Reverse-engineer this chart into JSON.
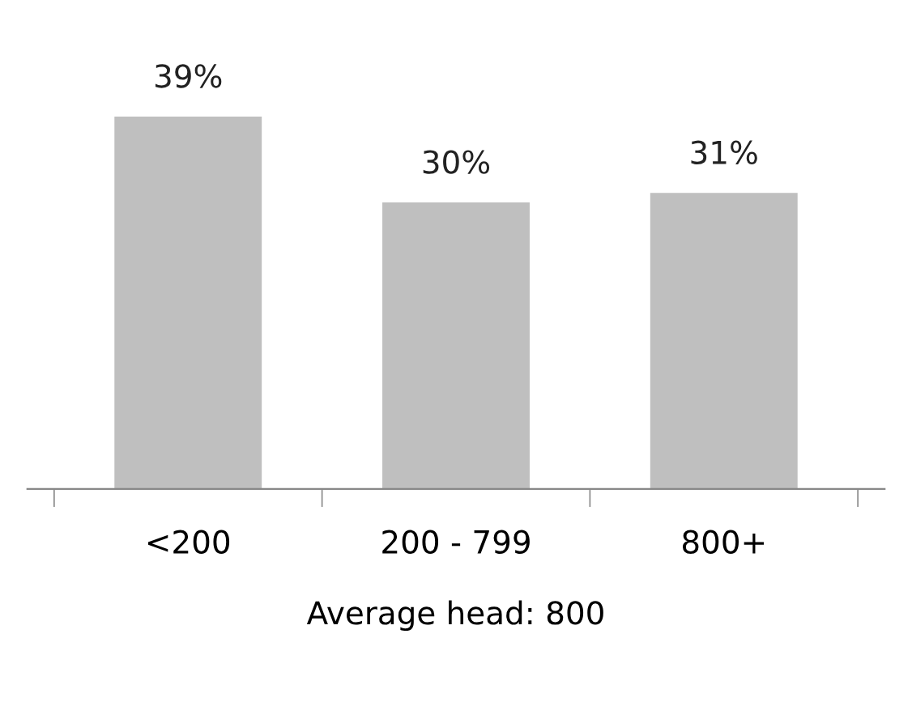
{
  "chart_data": {
    "type": "bar",
    "categories": [
      "<200",
      "200 - 799",
      "800+"
    ],
    "values": [
      39,
      30,
      31
    ],
    "value_labels": [
      "39%",
      "30%",
      "31%"
    ],
    "color": "#bfbfbf",
    "xlabel": "Average head: 800",
    "grid": false,
    "legend": false
  }
}
